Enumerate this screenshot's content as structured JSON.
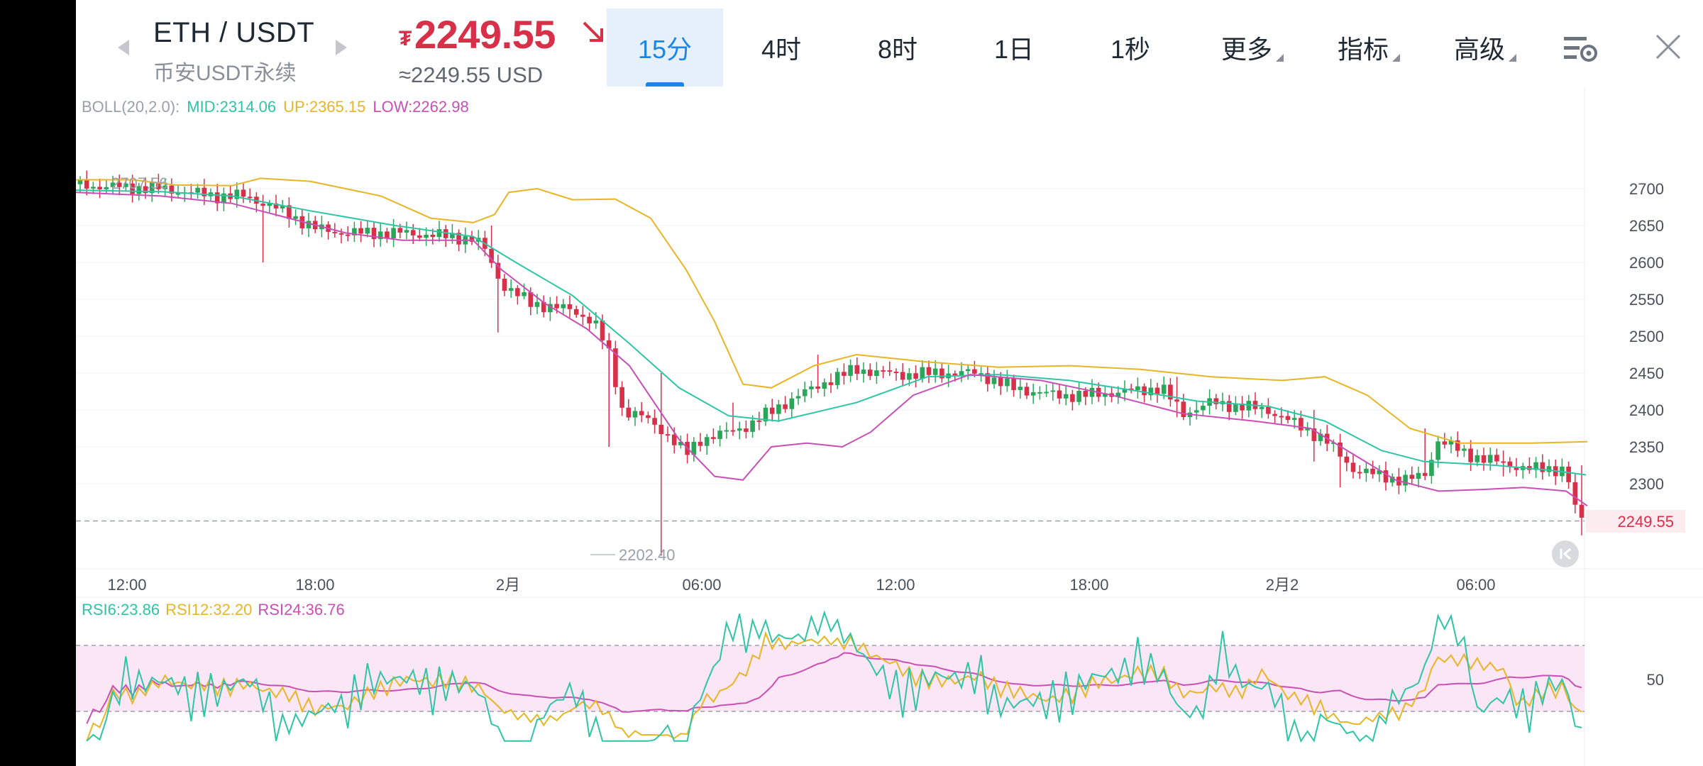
{
  "header": {
    "pair": "ETH / USDT",
    "market": "币安USDT永续",
    "price_symbol": "₮",
    "price": "2249.55",
    "price_usd": "≈2249.55 USD",
    "down_color": "#d9304a",
    "prev_icon": "chevron-left-icon",
    "next_icon": "chevron-right-icon"
  },
  "tabs": [
    {
      "label": "15分",
      "active": true
    },
    {
      "label": "4时",
      "active": false
    },
    {
      "label": "8时",
      "active": false
    },
    {
      "label": "1日",
      "active": false
    },
    {
      "label": "1秒",
      "active": false
    },
    {
      "label": "更多",
      "active": false,
      "dropdown": true
    },
    {
      "label": "指标",
      "active": false,
      "dropdown": true
    },
    {
      "label": "高级",
      "active": false,
      "dropdown": true
    }
  ],
  "icons": {
    "settings": "chart-settings-icon",
    "close": "close-icon",
    "reset": "scroll-to-latest-icon"
  },
  "boll": {
    "label": "BOLL(20,2.0):",
    "mid": "MID:2314.06",
    "up": "UP:2365.15",
    "low": "LOW:2262.98",
    "colors": {
      "mid": "#2ec5a6",
      "up": "#e8b525",
      "low": "#c94fb4"
    }
  },
  "rsi": {
    "rsi6": "RSI6:23.86",
    "rsi12": "RSI12:32.20",
    "rsi24": "RSI24:36.76",
    "axis_label": "50",
    "band": [
      30,
      70
    ]
  },
  "price_axis": [
    "2700",
    "2650",
    "2600",
    "2550",
    "2500",
    "2450",
    "2400",
    "2350",
    "2300"
  ],
  "last_price_tag": "2249.55",
  "markers": {
    "high": "2707.56",
    "low": "2202.40"
  },
  "time_axis": [
    "12:00",
    "18:00",
    "2月",
    "06:00",
    "12:00",
    "18:00",
    "2月2",
    "06:00"
  ],
  "chart_data": {
    "type": "candlestick",
    "interval": "15分",
    "price_range": [
      2230,
      2720
    ],
    "candle_closes_sample": [
      2707,
      2700,
      2695,
      2690,
      2680,
      2665,
      2650,
      2640,
      2635,
      2632,
      2620,
      2575,
      2540,
      2530,
      2520,
      2480,
      2420,
      2370,
      2340,
      2320,
      2350,
      2380,
      2365,
      2375,
      2410,
      2425,
      2430,
      2440,
      2462,
      2455,
      2450,
      2448,
      2452,
      2445,
      2430,
      2425,
      2418,
      2410,
      2420,
      2415,
      2430,
      2400,
      2390,
      2398,
      2405,
      2395,
      2380,
      2360,
      2320,
      2310,
      2300,
      2315,
      2320,
      2365,
      2350,
      2330,
      2320,
      2325,
      2315,
      2320,
      2318,
      2300,
      2260,
      2249.55
    ]
  }
}
